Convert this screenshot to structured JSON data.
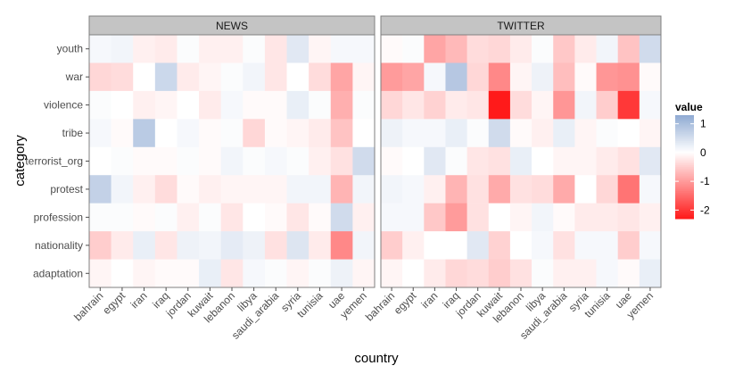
{
  "chart_data": {
    "type": "heatmap",
    "xlabel": "country",
    "ylabel": "category",
    "facets": [
      "NEWS",
      "TWITTER"
    ],
    "x_categories": [
      "bahrain",
      "egypt",
      "iran",
      "iraq",
      "jordan",
      "kuwait",
      "lebanon",
      "libya",
      "saudi_arabia",
      "syria",
      "tunisia",
      "uae",
      "yemen"
    ],
    "y_categories": [
      "youth",
      "war",
      "violence",
      "tribe",
      "terrorist_org",
      "protest",
      "profession",
      "nationality",
      "adaptation"
    ],
    "legend": {
      "title": "value",
      "ticks": [
        1,
        0,
        -1,
        -2
      ],
      "tick_labels": [
        "1",
        "0",
        "-1",
        "-2"
      ],
      "range": [
        -2.3,
        1.3
      ],
      "colors": {
        "low": "#ff1a1a",
        "mid": "#ffffff",
        "high": "#8faad3"
      }
    },
    "values": {
      "NEWS": {
        "youth": [
          0.1,
          0.15,
          -0.15,
          -0.2,
          0.05,
          -0.15,
          -0.15,
          0.05,
          -0.25,
          0.35,
          -0.1,
          0.1,
          0.1
        ],
        "war": [
          -0.4,
          -0.35,
          0,
          0.6,
          -0.2,
          -0.1,
          0.05,
          0.15,
          -0.25,
          0,
          -0.35,
          -0.9,
          -0.1
        ],
        "violence": [
          0.05,
          0,
          -0.15,
          -0.1,
          0,
          -0.2,
          0.1,
          -0.05,
          -0.05,
          0.25,
          0.05,
          -0.8,
          0.05
        ],
        "tribe": [
          0.1,
          -0.05,
          0.8,
          0,
          0.1,
          -0.05,
          0.05,
          -0.4,
          -0.05,
          -0.1,
          -0.2,
          -0.6,
          0
        ],
        "terrorist_org": [
          0,
          0.05,
          -0.05,
          -0.05,
          0.05,
          -0.05,
          0.15,
          0.05,
          0.1,
          0.05,
          -0.15,
          -0.3,
          0.55
        ],
        "protest": [
          0.7,
          0.15,
          -0.15,
          -0.35,
          -0.05,
          -0.15,
          -0.1,
          -0.1,
          -0.1,
          0.15,
          0.15,
          -0.75,
          0.15
        ],
        "profession": [
          0.05,
          0.05,
          -0.05,
          0.05,
          -0.15,
          0.05,
          -0.25,
          0,
          -0.05,
          -0.25,
          -0.05,
          0.55,
          -0.15
        ],
        "nationality": [
          -0.5,
          -0.2,
          0.25,
          -0.25,
          0.2,
          0.15,
          0.3,
          0.2,
          -0.3,
          0.4,
          -0.2,
          -1.2,
          0.15
        ],
        "adaptation": [
          -0.1,
          0,
          -0.1,
          -0.05,
          -0.05,
          0.25,
          -0.25,
          0.1,
          0.05,
          -0.1,
          0.05,
          0.2,
          -0.1
        ]
      },
      "TWITTER": {
        "youth": [
          -0.05,
          0.05,
          -0.9,
          -0.7,
          -0.35,
          -0.4,
          -0.2,
          0.05,
          -0.55,
          -0.2,
          0.15,
          -0.6,
          0.55
        ],
        "war": [
          -1.0,
          -0.9,
          0.1,
          0.85,
          -0.4,
          -1.2,
          -0.1,
          0.2,
          -0.65,
          -0.05,
          -1.05,
          -1.1,
          -0.05
        ],
        "violence": [
          -0.4,
          -0.25,
          -0.45,
          -0.2,
          -0.25,
          -2.3,
          -0.35,
          -0.1,
          -1.05,
          0.15,
          -0.5,
          -2.0,
          0.1
        ],
        "tribe": [
          0.2,
          0.1,
          0.1,
          0.25,
          0.05,
          0.55,
          -0.05,
          -0.15,
          0.25,
          -0.1,
          0.05,
          0,
          -0.1
        ],
        "terrorist_org": [
          -0.05,
          0,
          0.35,
          0.05,
          -0.25,
          -0.3,
          0.25,
          0,
          -0.1,
          -0.1,
          -0.2,
          -0.3,
          0.35
        ],
        "protest": [
          0.15,
          0.1,
          -0.15,
          -0.75,
          -0.3,
          -0.85,
          -0.3,
          -0.35,
          -0.85,
          0,
          -0.4,
          -1.4,
          0.1
        ],
        "profession": [
          0.1,
          0.1,
          -0.55,
          -1.0,
          -0.3,
          0,
          -0.1,
          0.15,
          -0.05,
          -0.2,
          -0.2,
          -0.25,
          -0.15
        ],
        "nationality": [
          -0.5,
          -0.15,
          0,
          0,
          0.35,
          -0.45,
          0,
          0.1,
          -0.3,
          0.1,
          0.1,
          -0.5,
          0.1
        ],
        "adaptation": [
          -0.1,
          0,
          -0.2,
          -0.4,
          -0.35,
          -0.5,
          -0.3,
          0.05,
          -0.15,
          -0.15,
          0.1,
          -0.05,
          0.25
        ]
      }
    }
  }
}
